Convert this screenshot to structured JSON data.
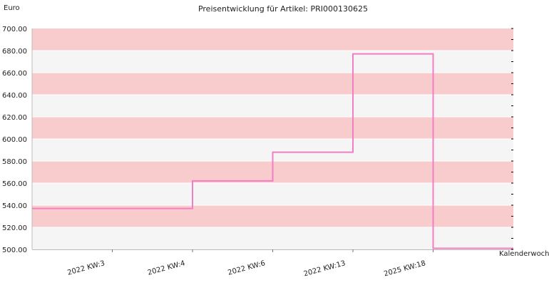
{
  "chart_data": {
    "type": "line",
    "step": true,
    "title": "Preisentwicklung für Artikel: PRI000130625",
    "ylabel": "Euro",
    "xlabel": "Kalenderwoche",
    "ylim": [
      500,
      700
    ],
    "yticks": [
      "500.00",
      "520.00",
      "540.00",
      "560.00",
      "580.00",
      "600.00",
      "620.00",
      "640.00",
      "660.00",
      "680.00",
      "700.00"
    ],
    "categories": [
      "2022 KW:3",
      "2022 KW:4",
      "2022 KW:6",
      "2022 KW:13",
      "2025 KW:18"
    ],
    "series": [
      {
        "values": [
          537,
          562,
          588,
          677,
          501
        ]
      }
    ],
    "grid": "alternating horizontal bands",
    "colors": {
      "line": "#f27ec4",
      "band_dark": "#f8cccc",
      "band_light": "#f5f5f5",
      "axis": "#000000"
    }
  }
}
